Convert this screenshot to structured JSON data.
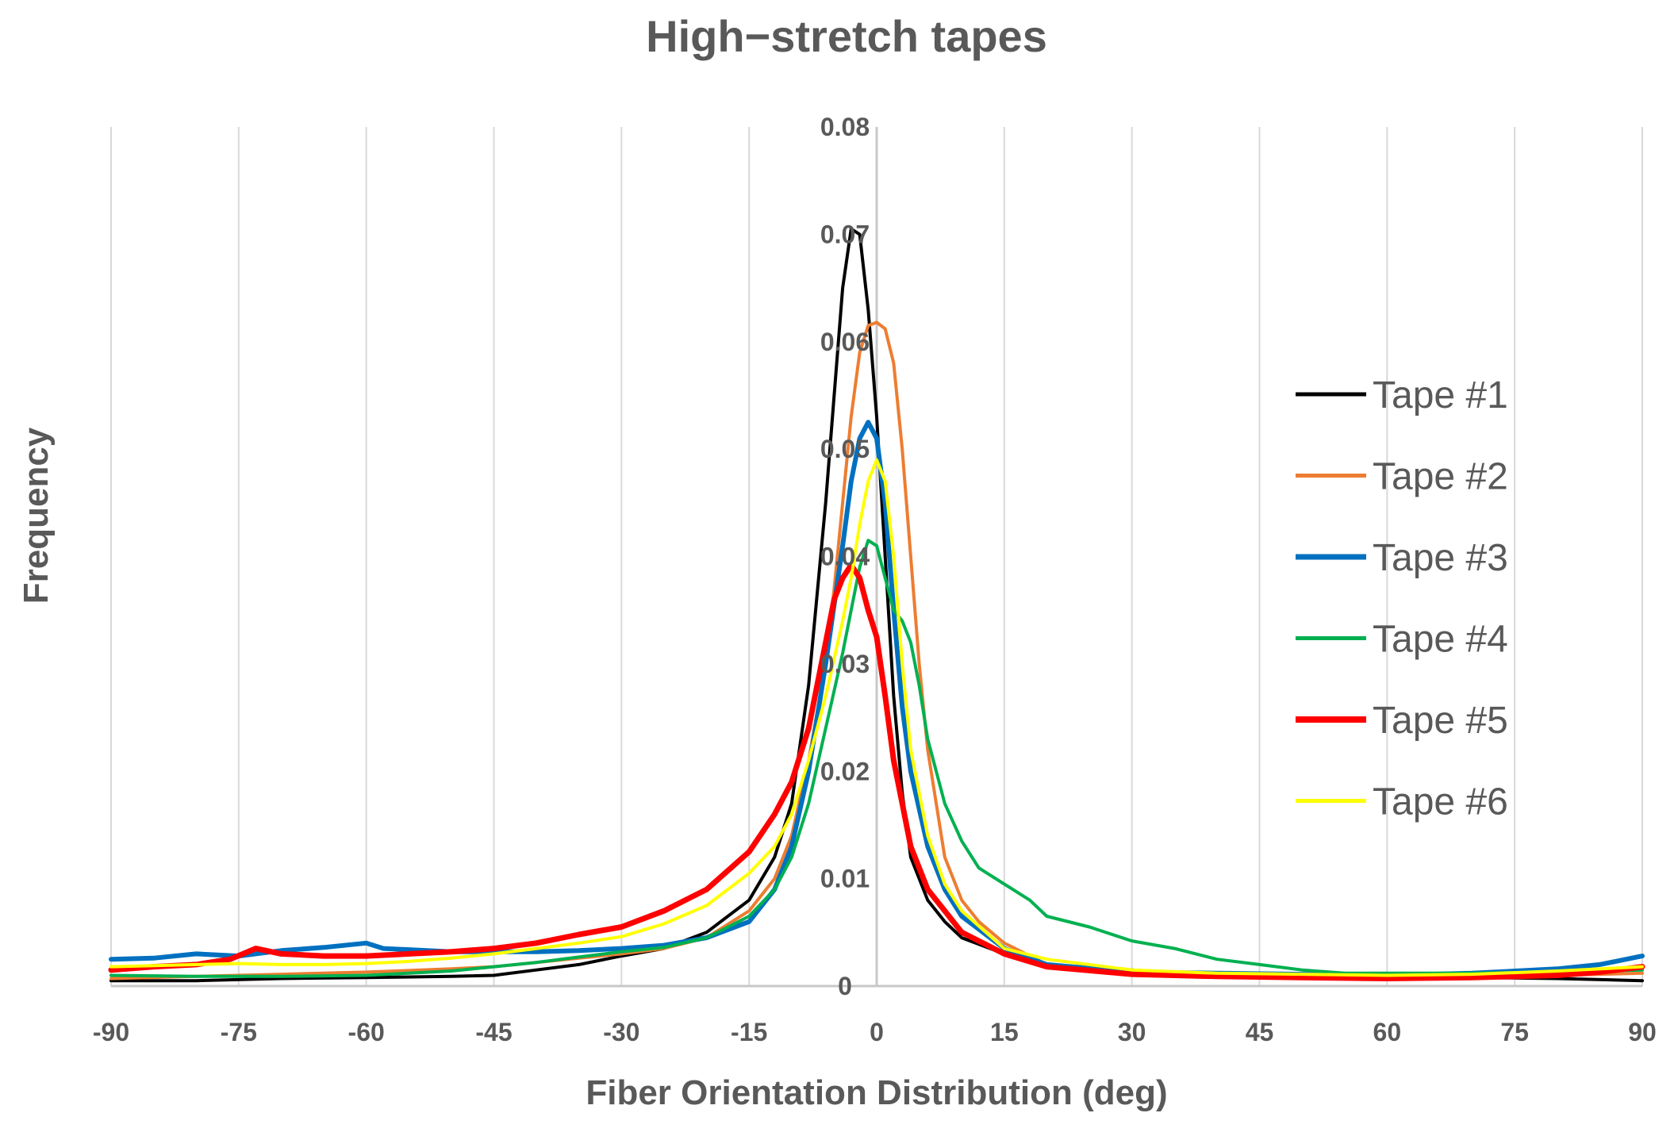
{
  "chart_data": {
    "type": "line",
    "title": "High−stretch tapes",
    "xlabel": "Fiber Orientation Distribution (deg)",
    "ylabel": "Frequency",
    "xlim": [
      -90,
      90
    ],
    "ylim": [
      0,
      0.08
    ],
    "grid": "vertical",
    "legend": "right",
    "x_ticks": [
      "-90",
      "-75",
      "-60",
      "-45",
      "-30",
      "-15",
      "0",
      "15",
      "30",
      "45",
      "60",
      "75",
      "90"
    ],
    "y_ticks": [
      "0",
      "0.01",
      "0.02",
      "0.03",
      "0.04",
      "0.05",
      "0.06",
      "0.07",
      "0.08"
    ],
    "x_tick_values": [
      -90,
      -75,
      -60,
      -45,
      -30,
      -15,
      0,
      15,
      30,
      45,
      60,
      75,
      90
    ],
    "y_tick_values": [
      0,
      0.01,
      0.02,
      0.03,
      0.04,
      0.05,
      0.06,
      0.07,
      0.08
    ],
    "series": [
      {
        "name": "Tape #1",
        "color": "#000000",
        "width": 4,
        "points": [
          [
            -90,
            0.0005
          ],
          [
            -80,
            0.0005
          ],
          [
            -70,
            0.0007
          ],
          [
            -60,
            0.0008
          ],
          [
            -50,
            0.0009
          ],
          [
            -45,
            0.001
          ],
          [
            -40,
            0.0015
          ],
          [
            -35,
            0.002
          ],
          [
            -30,
            0.0028
          ],
          [
            -25,
            0.0035
          ],
          [
            -20,
            0.005
          ],
          [
            -15,
            0.008
          ],
          [
            -12,
            0.012
          ],
          [
            -10,
            0.017
          ],
          [
            -8,
            0.028
          ],
          [
            -6,
            0.045
          ],
          [
            -5,
            0.055
          ],
          [
            -4,
            0.065
          ],
          [
            -3,
            0.0705
          ],
          [
            -2,
            0.07
          ],
          [
            -1,
            0.063
          ],
          [
            0,
            0.053
          ],
          [
            1,
            0.04
          ],
          [
            2,
            0.027
          ],
          [
            3,
            0.018
          ],
          [
            4,
            0.012
          ],
          [
            6,
            0.008
          ],
          [
            8,
            0.006
          ],
          [
            10,
            0.0045
          ],
          [
            15,
            0.003
          ],
          [
            20,
            0.002
          ],
          [
            30,
            0.0015
          ],
          [
            40,
            0.001
          ],
          [
            50,
            0.001
          ],
          [
            60,
            0.0009
          ],
          [
            70,
            0.0008
          ],
          [
            80,
            0.0007
          ],
          [
            90,
            0.0005
          ]
        ]
      },
      {
        "name": "Tape #2",
        "color": "#ED7D31",
        "width": 4,
        "points": [
          [
            -90,
            0.0007
          ],
          [
            -80,
            0.0009
          ],
          [
            -70,
            0.0011
          ],
          [
            -60,
            0.0013
          ],
          [
            -50,
            0.0016
          ],
          [
            -45,
            0.0018
          ],
          [
            -40,
            0.0022
          ],
          [
            -35,
            0.0026
          ],
          [
            -30,
            0.003
          ],
          [
            -25,
            0.0035
          ],
          [
            -20,
            0.0045
          ],
          [
            -15,
            0.007
          ],
          [
            -12,
            0.01
          ],
          [
            -10,
            0.014
          ],
          [
            -8,
            0.021
          ],
          [
            -6,
            0.03
          ],
          [
            -5,
            0.037
          ],
          [
            -4,
            0.045
          ],
          [
            -3,
            0.053
          ],
          [
            -2,
            0.059
          ],
          [
            -1,
            0.0615
          ],
          [
            0,
            0.0618
          ],
          [
            1,
            0.0612
          ],
          [
            2,
            0.058
          ],
          [
            3,
            0.05
          ],
          [
            4,
            0.04
          ],
          [
            5,
            0.03
          ],
          [
            6,
            0.022
          ],
          [
            8,
            0.012
          ],
          [
            10,
            0.008
          ],
          [
            12,
            0.006
          ],
          [
            15,
            0.004
          ],
          [
            20,
            0.002
          ],
          [
            30,
            0.0013
          ],
          [
            40,
            0.001
          ],
          [
            50,
            0.0009
          ],
          [
            60,
            0.0009
          ],
          [
            70,
            0.0009
          ],
          [
            80,
            0.001
          ],
          [
            90,
            0.0012
          ]
        ]
      },
      {
        "name": "Tape #3",
        "color": "#0070C0",
        "width": 6,
        "points": [
          [
            -90,
            0.0025
          ],
          [
            -85,
            0.0026
          ],
          [
            -80,
            0.003
          ],
          [
            -75,
            0.0028
          ],
          [
            -70,
            0.0033
          ],
          [
            -65,
            0.0036
          ],
          [
            -60,
            0.004
          ],
          [
            -58,
            0.0035
          ],
          [
            -50,
            0.0032
          ],
          [
            -45,
            0.0032
          ],
          [
            -40,
            0.0032
          ],
          [
            -35,
            0.0033
          ],
          [
            -30,
            0.0035
          ],
          [
            -25,
            0.0038
          ],
          [
            -20,
            0.0045
          ],
          [
            -15,
            0.006
          ],
          [
            -12,
            0.009
          ],
          [
            -10,
            0.013
          ],
          [
            -8,
            0.02
          ],
          [
            -6,
            0.03
          ],
          [
            -4,
            0.041
          ],
          [
            -3,
            0.047
          ],
          [
            -2,
            0.051
          ],
          [
            -1,
            0.0525
          ],
          [
            0,
            0.051
          ],
          [
            1,
            0.045
          ],
          [
            2,
            0.035
          ],
          [
            3,
            0.026
          ],
          [
            4,
            0.02
          ],
          [
            6,
            0.013
          ],
          [
            8,
            0.009
          ],
          [
            10,
            0.0065
          ],
          [
            15,
            0.0035
          ],
          [
            20,
            0.002
          ],
          [
            30,
            0.0013
          ],
          [
            40,
            0.0012
          ],
          [
            50,
            0.0011
          ],
          [
            60,
            0.001
          ],
          [
            70,
            0.0012
          ],
          [
            80,
            0.0016
          ],
          [
            85,
            0.002
          ],
          [
            90,
            0.0028
          ]
        ]
      },
      {
        "name": "Tape #4",
        "color": "#00B050",
        "width": 4,
        "points": [
          [
            -90,
            0.001
          ],
          [
            -80,
            0.0009
          ],
          [
            -70,
            0.0009
          ],
          [
            -60,
            0.001
          ],
          [
            -50,
            0.0014
          ],
          [
            -45,
            0.0018
          ],
          [
            -40,
            0.0022
          ],
          [
            -35,
            0.0027
          ],
          [
            -30,
            0.0032
          ],
          [
            -25,
            0.0036
          ],
          [
            -20,
            0.0045
          ],
          [
            -15,
            0.0065
          ],
          [
            -12,
            0.009
          ],
          [
            -10,
            0.012
          ],
          [
            -8,
            0.017
          ],
          [
            -6,
            0.024
          ],
          [
            -4,
            0.031
          ],
          [
            -3,
            0.035
          ],
          [
            -2,
            0.039
          ],
          [
            -1,
            0.0415
          ],
          [
            0,
            0.041
          ],
          [
            1,
            0.038
          ],
          [
            2,
            0.035
          ],
          [
            3,
            0.034
          ],
          [
            4,
            0.032
          ],
          [
            5,
            0.028
          ],
          [
            6,
            0.023
          ],
          [
            8,
            0.017
          ],
          [
            10,
            0.0135
          ],
          [
            12,
            0.011
          ],
          [
            15,
            0.0095
          ],
          [
            18,
            0.008
          ],
          [
            20,
            0.0065
          ],
          [
            25,
            0.0055
          ],
          [
            30,
            0.0042
          ],
          [
            35,
            0.0035
          ],
          [
            40,
            0.0025
          ],
          [
            45,
            0.002
          ],
          [
            50,
            0.0015
          ],
          [
            55,
            0.0012
          ],
          [
            60,
            0.0012
          ],
          [
            70,
            0.0012
          ],
          [
            80,
            0.0013
          ],
          [
            90,
            0.0015
          ]
        ]
      },
      {
        "name": "Tape #5",
        "color": "#FF0000",
        "width": 7,
        "points": [
          [
            -90,
            0.0015
          ],
          [
            -85,
            0.0018
          ],
          [
            -80,
            0.002
          ],
          [
            -76,
            0.0025
          ],
          [
            -73,
            0.0035
          ],
          [
            -70,
            0.003
          ],
          [
            -65,
            0.0028
          ],
          [
            -60,
            0.0028
          ],
          [
            -55,
            0.003
          ],
          [
            -50,
            0.0032
          ],
          [
            -45,
            0.0035
          ],
          [
            -40,
            0.004
          ],
          [
            -35,
            0.0048
          ],
          [
            -30,
            0.0055
          ],
          [
            -25,
            0.007
          ],
          [
            -20,
            0.009
          ],
          [
            -15,
            0.0125
          ],
          [
            -12,
            0.016
          ],
          [
            -10,
            0.019
          ],
          [
            -8,
            0.024
          ],
          [
            -7,
            0.028
          ],
          [
            -6,
            0.032
          ],
          [
            -5,
            0.036
          ],
          [
            -4,
            0.038
          ],
          [
            -3,
            0.0392
          ],
          [
            -2,
            0.038
          ],
          [
            -1,
            0.035
          ],
          [
            0,
            0.0325
          ],
          [
            1,
            0.027
          ],
          [
            2,
            0.021
          ],
          [
            3,
            0.017
          ],
          [
            4,
            0.013
          ],
          [
            6,
            0.009
          ],
          [
            8,
            0.007
          ],
          [
            10,
            0.005
          ],
          [
            15,
            0.003
          ],
          [
            20,
            0.0018
          ],
          [
            30,
            0.0011
          ],
          [
            40,
            0.0009
          ],
          [
            50,
            0.0008
          ],
          [
            60,
            0.0007
          ],
          [
            70,
            0.0008
          ],
          [
            80,
            0.001
          ],
          [
            85,
            0.0013
          ],
          [
            90,
            0.0018
          ]
        ]
      },
      {
        "name": "Tape #6",
        "color": "#FFFF00",
        "width": 4,
        "points": [
          [
            -90,
            0.0018
          ],
          [
            -85,
            0.0019
          ],
          [
            -80,
            0.002
          ],
          [
            -75,
            0.0021
          ],
          [
            -70,
            0.002
          ],
          [
            -65,
            0.002
          ],
          [
            -60,
            0.0021
          ],
          [
            -55,
            0.0023
          ],
          [
            -50,
            0.0026
          ],
          [
            -45,
            0.003
          ],
          [
            -40,
            0.0035
          ],
          [
            -35,
            0.004
          ],
          [
            -30,
            0.0046
          ],
          [
            -25,
            0.0058
          ],
          [
            -20,
            0.0075
          ],
          [
            -15,
            0.0105
          ],
          [
            -12,
            0.013
          ],
          [
            -10,
            0.016
          ],
          [
            -8,
            0.021
          ],
          [
            -6,
            0.027
          ],
          [
            -4,
            0.034
          ],
          [
            -3,
            0.038
          ],
          [
            -2,
            0.043
          ],
          [
            -1,
            0.047
          ],
          [
            0,
            0.049
          ],
          [
            1,
            0.047
          ],
          [
            2,
            0.04
          ],
          [
            3,
            0.03
          ],
          [
            4,
            0.022
          ],
          [
            6,
            0.014
          ],
          [
            8,
            0.0095
          ],
          [
            10,
            0.007
          ],
          [
            15,
            0.0035
          ],
          [
            20,
            0.0025
          ],
          [
            30,
            0.0015
          ],
          [
            40,
            0.0012
          ],
          [
            50,
            0.0011
          ],
          [
            60,
            0.001
          ],
          [
            70,
            0.0011
          ],
          [
            80,
            0.0014
          ],
          [
            90,
            0.0018
          ]
        ]
      }
    ]
  }
}
